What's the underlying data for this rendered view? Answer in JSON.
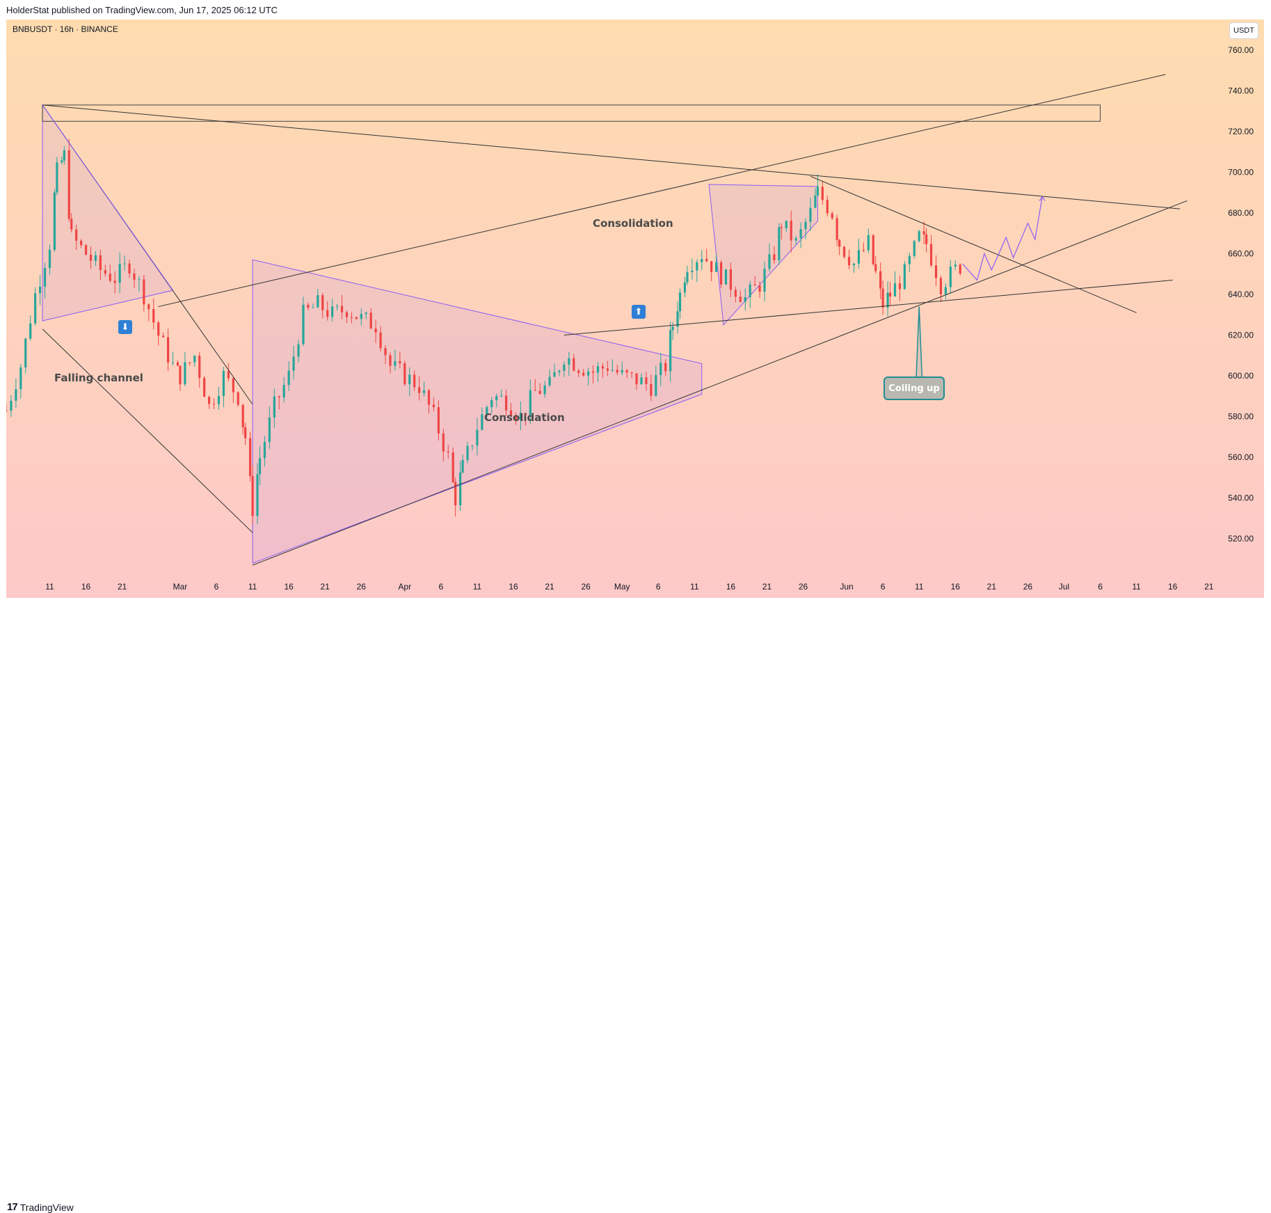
{
  "header": {
    "published": "HolderStat published on TradingView.com, Jun 17, 2025 06:12 UTC",
    "symbol_line": "BNBUSDT · 16h · BINANCE",
    "currency_button": "USDT"
  },
  "footer": {
    "brand": "TradingView",
    "logo_mark": "17"
  },
  "annotations": {
    "falling_channel": "Falling channel",
    "consolidation_mid": "Consolidation",
    "consolidation_upper": "Consolidation",
    "coiling_up": "Coiling up"
  },
  "colors": {
    "bg_top": "#fedcb0",
    "bg_bottom": "#fdc9c9",
    "up": "#26a69a",
    "down": "#ef4444",
    "pattern_line": "#8b5cf6",
    "trend_line": "#333333",
    "coil_border": "#1f8c93",
    "arrow_box": "#2f7fd6"
  },
  "icons": {
    "down_arrow": "down-arrow-icon",
    "up_arrow": "up-arrow-icon"
  },
  "chart_data": {
    "type": "candlestick",
    "ylim": [
      505,
      775
    ],
    "y_ticks": [
      520,
      540,
      560,
      580,
      600,
      620,
      640,
      660,
      680,
      700,
      720,
      740,
      760
    ],
    "y_tick_labels": [
      "520.00",
      "540.00",
      "560.00",
      "580.00",
      "600.00",
      "620.00",
      "640.00",
      "660.00",
      "680.00",
      "700.00",
      "720.00",
      "740.00",
      "760.00"
    ],
    "x_range": [
      "2025-02-05",
      "2025-07-24"
    ],
    "x_ticks": [
      {
        "date": "2025-02-11",
        "label": "11"
      },
      {
        "date": "2025-02-16",
        "label": "16"
      },
      {
        "date": "2025-02-21",
        "label": "21"
      },
      {
        "date": "2025-03-01",
        "label": "Mar"
      },
      {
        "date": "2025-03-06",
        "label": "6"
      },
      {
        "date": "2025-03-11",
        "label": "11"
      },
      {
        "date": "2025-03-16",
        "label": "16"
      },
      {
        "date": "2025-03-21",
        "label": "21"
      },
      {
        "date": "2025-03-26",
        "label": "26"
      },
      {
        "date": "2025-04-01",
        "label": "Apr"
      },
      {
        "date": "2025-04-06",
        "label": "6"
      },
      {
        "date": "2025-04-11",
        "label": "11"
      },
      {
        "date": "2025-04-16",
        "label": "16"
      },
      {
        "date": "2025-04-21",
        "label": "21"
      },
      {
        "date": "2025-04-26",
        "label": "26"
      },
      {
        "date": "2025-05-01",
        "label": "May"
      },
      {
        "date": "2025-05-06",
        "label": "6"
      },
      {
        "date": "2025-05-11",
        "label": "11"
      },
      {
        "date": "2025-05-16",
        "label": "16"
      },
      {
        "date": "2025-05-21",
        "label": "21"
      },
      {
        "date": "2025-05-26",
        "label": "26"
      },
      {
        "date": "2025-06-01",
        "label": "Jun"
      },
      {
        "date": "2025-06-06",
        "label": "6"
      },
      {
        "date": "2025-06-11",
        "label": "11"
      },
      {
        "date": "2025-06-16",
        "label": "16"
      },
      {
        "date": "2025-06-21",
        "label": "21"
      },
      {
        "date": "2025-06-26",
        "label": "26"
      },
      {
        "date": "2025-07-01",
        "label": "Jul"
      },
      {
        "date": "2025-07-06",
        "label": "6"
      },
      {
        "date": "2025-07-11",
        "label": "11"
      },
      {
        "date": "2025-07-16",
        "label": "16"
      },
      {
        "date": "2025-07-21",
        "label": "21"
      }
    ],
    "price_path": [
      [
        "2025-02-05",
        583
      ],
      [
        "2025-02-07",
        605
      ],
      [
        "2025-02-09",
        640
      ],
      [
        "2025-02-11",
        665
      ],
      [
        "2025-02-12",
        700
      ],
      [
        "2025-02-13",
        708
      ],
      [
        "2025-02-14",
        668
      ],
      [
        "2025-02-16",
        660
      ],
      [
        "2025-02-18",
        652
      ],
      [
        "2025-02-20",
        648
      ],
      [
        "2025-02-22",
        655
      ],
      [
        "2025-02-24",
        640
      ],
      [
        "2025-02-26",
        620
      ],
      [
        "2025-02-28",
        605
      ],
      [
        "2025-03-01",
        600
      ],
      [
        "2025-03-03",
        610
      ],
      [
        "2025-03-05",
        585
      ],
      [
        "2025-03-07",
        600
      ],
      [
        "2025-03-09",
        590
      ],
      [
        "2025-03-10",
        570
      ],
      [
        "2025-03-11",
        535
      ],
      [
        "2025-03-12",
        560
      ],
      [
        "2025-03-14",
        585
      ],
      [
        "2025-03-16",
        600
      ],
      [
        "2025-03-18",
        630
      ],
      [
        "2025-03-20",
        635
      ],
      [
        "2025-03-22",
        630
      ],
      [
        "2025-03-24",
        633
      ],
      [
        "2025-03-26",
        628
      ],
      [
        "2025-03-28",
        625
      ],
      [
        "2025-03-30",
        605
      ],
      [
        "2025-04-01",
        600
      ],
      [
        "2025-04-03",
        595
      ],
      [
        "2025-04-05",
        580
      ],
      [
        "2025-04-07",
        560
      ],
      [
        "2025-04-08",
        540
      ],
      [
        "2025-04-09",
        555
      ],
      [
        "2025-04-11",
        575
      ],
      [
        "2025-04-13",
        590
      ],
      [
        "2025-04-15",
        588
      ],
      [
        "2025-04-17",
        580
      ],
      [
        "2025-04-19",
        592
      ],
      [
        "2025-04-21",
        595
      ],
      [
        "2025-04-23",
        610
      ],
      [
        "2025-04-25",
        605
      ],
      [
        "2025-04-27",
        602
      ],
      [
        "2025-04-29",
        605
      ],
      [
        "2025-05-01",
        600
      ],
      [
        "2025-05-03",
        598
      ],
      [
        "2025-05-05",
        595
      ],
      [
        "2025-05-07",
        605
      ],
      [
        "2025-05-08",
        625
      ],
      [
        "2025-05-09",
        640
      ],
      [
        "2025-05-10",
        655
      ],
      [
        "2025-05-12",
        660
      ],
      [
        "2025-05-14",
        652
      ],
      [
        "2025-05-16",
        645
      ],
      [
        "2025-05-18",
        638
      ],
      [
        "2025-05-20",
        645
      ],
      [
        "2025-05-22",
        660
      ],
      [
        "2025-05-23",
        675
      ],
      [
        "2025-05-25",
        665
      ],
      [
        "2025-05-27",
        680
      ],
      [
        "2025-05-28",
        690
      ],
      [
        "2025-05-30",
        680
      ],
      [
        "2025-05-31",
        665
      ],
      [
        "2025-06-02",
        655
      ],
      [
        "2025-06-04",
        665
      ],
      [
        "2025-06-05",
        650
      ],
      [
        "2025-06-06",
        635
      ],
      [
        "2025-06-07",
        640
      ],
      [
        "2025-06-09",
        650
      ],
      [
        "2025-06-11",
        668
      ],
      [
        "2025-06-12",
        665
      ],
      [
        "2025-06-14",
        645
      ],
      [
        "2025-06-16",
        652
      ],
      [
        "2025-06-17",
        655
      ]
    ],
    "projection": [
      [
        "2025-06-17",
        655
      ],
      [
        "2025-06-19",
        647
      ],
      [
        "2025-06-20",
        660
      ],
      [
        "2025-06-21",
        652
      ],
      [
        "2025-06-23",
        668
      ],
      [
        "2025-06-24",
        658
      ],
      [
        "2025-06-26",
        675
      ],
      [
        "2025-06-27",
        667
      ],
      [
        "2025-06-28",
        688
      ]
    ]
  }
}
